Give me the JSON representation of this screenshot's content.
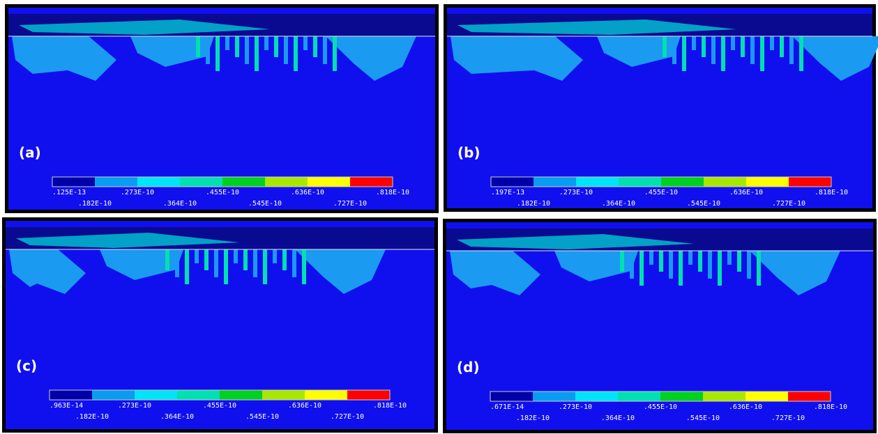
{
  "panels": [
    {
      "label": "(a)",
      "colorbar_labels": [
        ".125E-13",
        ".182E-10",
        ".273E-10",
        ".364E-10",
        ".455E-10",
        ".545E-10",
        ".636E-10",
        ".727E-10",
        ".818E-10"
      ]
    },
    {
      "label": "(b)",
      "colorbar_labels": [
        ".197E-13",
        ".182E-10",
        ".273E-10",
        ".364E-10",
        ".455E-10",
        ".545E-10",
        ".636E-10",
        ".727E-10",
        ".818E-10"
      ]
    },
    {
      "label": "(c)",
      "colorbar_labels": [
        ".963E-14",
        ".182E-10",
        ".273E-10",
        ".364E-10",
        ".455E-10",
        ".545E-10",
        ".636E-10",
        ".727E-10",
        ".818E-10"
      ]
    },
    {
      "label": "(d)",
      "colorbar_labels": [
        ".671E-14",
        ".182E-10",
        ".273E-10",
        ".364E-10",
        ".455E-10",
        ".545E-10",
        ".636E-10",
        ".727E-10",
        ".818E-10"
      ]
    }
  ]
}
